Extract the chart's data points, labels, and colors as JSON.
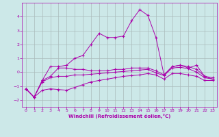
{
  "bg_color": "#cce8e8",
  "grid_color": "#aabbbb",
  "line_color": "#aa00aa",
  "xlabel": "Windchill (Refroidissement éolien,°C)",
  "xlim": [
    -0.5,
    23.5
  ],
  "ylim": [
    -2.5,
    5.0
  ],
  "yticks": [
    -2,
    -1,
    0,
    1,
    2,
    3,
    4
  ],
  "xticks": [
    0,
    1,
    2,
    3,
    4,
    5,
    6,
    7,
    8,
    9,
    10,
    11,
    12,
    13,
    14,
    15,
    16,
    17,
    18,
    19,
    20,
    21,
    22,
    23
  ],
  "line1_x": [
    0,
    1,
    2,
    3,
    4,
    5,
    6,
    7,
    8,
    9,
    10,
    11,
    12,
    13,
    14,
    15,
    16,
    17,
    18,
    19,
    20,
    21,
    22,
    23
  ],
  "line1_y": [
    -1.2,
    -1.8,
    -0.6,
    0.4,
    0.4,
    0.5,
    1.0,
    1.2,
    2.0,
    2.8,
    2.5,
    2.5,
    2.6,
    3.7,
    4.5,
    4.1,
    2.5,
    -0.2,
    0.4,
    0.5,
    0.4,
    0.2,
    -0.3,
    -0.4
  ],
  "line2_x": [
    0,
    1,
    2,
    3,
    4,
    5,
    6,
    7,
    8,
    9,
    10,
    11,
    12,
    13,
    14,
    15,
    16,
    17,
    18,
    19,
    20,
    21,
    22,
    23
  ],
  "line2_y": [
    -1.2,
    -1.8,
    -0.6,
    -0.3,
    0.3,
    0.3,
    0.2,
    0.2,
    0.1,
    0.1,
    0.1,
    0.2,
    0.2,
    0.3,
    0.3,
    0.3,
    0.1,
    -0.2,
    0.4,
    0.5,
    0.3,
    0.5,
    -0.3,
    -0.5
  ],
  "line3_x": [
    0,
    1,
    2,
    3,
    4,
    5,
    6,
    7,
    8,
    9,
    10,
    11,
    12,
    13,
    14,
    15,
    16,
    17,
    18,
    19,
    20,
    21,
    22,
    23
  ],
  "line3_y": [
    -1.2,
    -1.8,
    -0.7,
    -0.4,
    -0.3,
    -0.3,
    -0.2,
    -0.2,
    -0.15,
    -0.1,
    -0.05,
    0.0,
    0.05,
    0.1,
    0.15,
    0.2,
    -0.05,
    -0.25,
    0.3,
    0.35,
    0.25,
    0.0,
    -0.4,
    -0.5
  ],
  "line4_x": [
    0,
    1,
    2,
    3,
    4,
    5,
    6,
    7,
    8,
    9,
    10,
    11,
    12,
    13,
    14,
    15,
    16,
    17,
    18,
    19,
    20,
    21,
    22,
    23
  ],
  "line4_y": [
    -1.2,
    -1.8,
    -1.3,
    -1.2,
    -1.25,
    -1.3,
    -1.1,
    -0.9,
    -0.7,
    -0.6,
    -0.5,
    -0.4,
    -0.3,
    -0.25,
    -0.2,
    -0.1,
    -0.2,
    -0.5,
    -0.1,
    -0.1,
    -0.2,
    -0.3,
    -0.6,
    -0.6
  ]
}
